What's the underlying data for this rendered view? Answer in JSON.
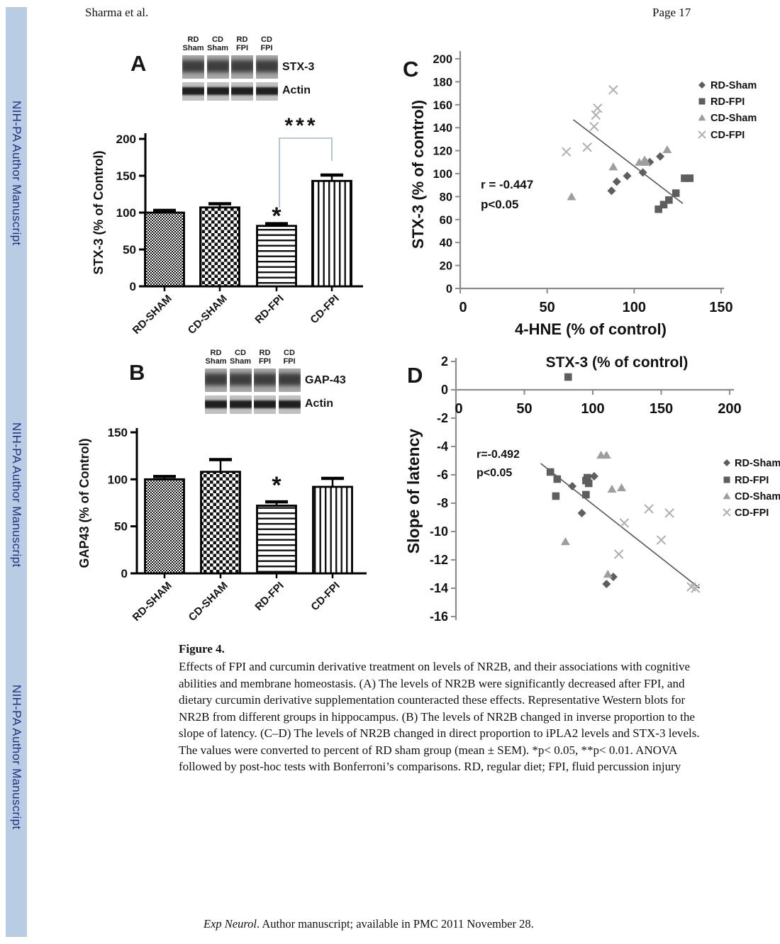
{
  "header": {
    "author": "Sharma et al.",
    "page_label": "Page 17"
  },
  "sidebar": {
    "watermark": "NIH-PA Author Manuscript"
  },
  "footer": {
    "journal_italic": "Exp Neurol",
    "text": ". Author manuscript; available in PMC 2011 November 28."
  },
  "caption": {
    "title": "Figure 4.",
    "body": "Effects of FPI and curcumin derivative treatment on levels of NR2B, and their associations with cognitive abilities and membrane homeostasis. (A) The levels of NR2B were significantly decreased after FPI, and dietary curcumin derivative supplementation counteracted these effects. Representative Western blots for NR2B from different groups in hippocampus. (B) The levels of NR2B changed in inverse proportion to the slope of latency. (C–D) The levels of NR2B changed in direct proportion to iPLA2 levels and STX-3 levels. The values were converted to percent of RD sham group (mean ± SEM). *p< 0.05, **p< 0.01. ANOVA followed by post-hoc tests with Bonferroni’s comparisons. RD, regular diet; FPI, fluid percussion injury"
  },
  "figure": {
    "panel_letters": [
      "A",
      "B",
      "C",
      "D"
    ],
    "blots": [
      {
        "panel": "A",
        "lane_labels": [
          [
            "RD",
            "Sham"
          ],
          [
            "CD",
            "Sham"
          ],
          [
            "RD",
            "FPI"
          ],
          [
            "CD",
            "FPI"
          ]
        ],
        "row_labels": [
          "STX-3",
          "Actin"
        ]
      },
      {
        "panel": "B",
        "lane_labels": [
          [
            "RD",
            "Sham"
          ],
          [
            "CD",
            "Sham"
          ],
          [
            "RD",
            "FPI"
          ],
          [
            "CD",
            "FPI"
          ]
        ],
        "row_labels": [
          "GAP-43",
          "Actin"
        ]
      }
    ]
  },
  "colors": {
    "sidebar_bg": "#b8cce4",
    "sidebar_text": "#27317f",
    "bracket": "#a3b8cd",
    "rd_marker": "#5e5e5e",
    "cd_sham_marker": "#9e9e9e",
    "cd_fpi_marker": "#b0b0b0",
    "trendline": "#555555",
    "scatter_axis": "#8c8c8c",
    "bar_axis": "#000000"
  },
  "chart_data": [
    {
      "panel": "A",
      "type": "bar",
      "categories": [
        "RD-SHAM",
        "CD-SHAM",
        "RD-FPI",
        "CD-FPI"
      ],
      "values": [
        100,
        107,
        82,
        143
      ],
      "errors": [
        3,
        5,
        3,
        8
      ],
      "ylabel": "STX-3 (% of Control)",
      "ylim": [
        0,
        200
      ],
      "yticks": [
        0,
        50,
        100,
        150,
        200
      ],
      "bar_patterns": [
        "fine-checker",
        "coarse-checker",
        "horizontal-lines",
        "vertical-lines"
      ],
      "significance": [
        {
          "type": "star",
          "category": "RD-FPI",
          "label": "*"
        },
        {
          "type": "bracket",
          "from": "RD-FPI",
          "to": "CD-FPI",
          "label": "***"
        }
      ]
    },
    {
      "panel": "B",
      "type": "bar",
      "categories": [
        "RD-SHAM",
        "CD-SHAM",
        "RD-FPI",
        "CD-FPI"
      ],
      "values": [
        100,
        108,
        72,
        92
      ],
      "errors": [
        3,
        13,
        4,
        9
      ],
      "ylabel": "GAP43 (% of Control)",
      "ylim": [
        0,
        150
      ],
      "yticks": [
        0,
        50,
        100,
        150
      ],
      "bar_patterns": [
        "fine-checker",
        "coarse-checker",
        "horizontal-lines",
        "vertical-lines"
      ],
      "significance": [
        {
          "type": "star",
          "category": "RD-FPI",
          "label": "*"
        }
      ]
    },
    {
      "panel": "C",
      "type": "scatter",
      "xlabel": "4-HNE (% of control)",
      "ylabel": "STX-3 (% of control)",
      "xlim": [
        0,
        160
      ],
      "xticks": [
        0,
        50,
        100,
        150
      ],
      "ylim": [
        0,
        200
      ],
      "yticks": [
        0,
        20,
        40,
        60,
        80,
        100,
        120,
        140,
        160,
        180,
        200
      ],
      "correlation": {
        "r_text": "r = -0.447",
        "p_text": "p<0.05"
      },
      "legend_position": "top-right",
      "series": [
        {
          "name": "RD-Sham",
          "marker": "diamond",
          "color": "#5e5e5e",
          "points": [
            [
              87,
              85
            ],
            [
              90,
              93
            ],
            [
              96,
              98
            ],
            [
              105,
              101
            ],
            [
              109,
              110
            ],
            [
              115,
              115
            ]
          ]
        },
        {
          "name": "RD-FPI",
          "marker": "square",
          "color": "#5e5e5e",
          "points": [
            [
              114,
              69
            ],
            [
              117,
              73
            ],
            [
              120,
              77
            ],
            [
              124,
              83
            ],
            [
              129,
              96
            ],
            [
              132,
              96
            ]
          ]
        },
        {
          "name": "CD-Sham",
          "marker": "triangle",
          "color": "#9e9e9e",
          "points": [
            [
              64,
              80
            ],
            [
              88,
              106
            ],
            [
              103,
              110
            ],
            [
              106,
              112
            ],
            [
              107,
              110
            ],
            [
              119,
              121
            ]
          ]
        },
        {
          "name": "CD-FPI",
          "marker": "x",
          "color": "#b0b0b0",
          "points": [
            [
              61,
              119
            ],
            [
              73,
              123
            ],
            [
              77,
              141
            ],
            [
              78,
              151
            ],
            [
              79,
              157
            ],
            [
              88,
              173
            ]
          ]
        }
      ],
      "trendline": {
        "x1": 65,
        "y1": 147,
        "x2": 128,
        "y2": 74
      }
    },
    {
      "panel": "D",
      "type": "scatter",
      "title": "STX-3 (% of control)",
      "ylabel": "Slope of latency",
      "xlim": [
        0,
        200
      ],
      "xticks": [
        0,
        50,
        100,
        150,
        200
      ],
      "ylim": [
        -16,
        2
      ],
      "yticks": [
        2,
        0,
        -2,
        -4,
        -6,
        -8,
        -10,
        -12,
        -14,
        -16
      ],
      "correlation": {
        "r_text": "r=-0.492",
        "p_text": "p<0.05"
      },
      "legend_position": "right",
      "series": [
        {
          "name": "RD-Sham",
          "marker": "diamond",
          "color": "#5e5e5e",
          "points": [
            [
              101,
              -6.1
            ],
            [
              85,
              -6.8
            ],
            [
              92,
              -8.7
            ],
            [
              115,
              -13.2
            ],
            [
              110,
              -13.7
            ]
          ]
        },
        {
          "name": "RD-FPI",
          "marker": "square",
          "color": "#5e5e5e",
          "points": [
            [
              82,
              0.9
            ],
            [
              69,
              -5.8
            ],
            [
              74,
              -6.3
            ],
            [
              95,
              -6.4
            ],
            [
              96,
              -6.2
            ],
            [
              97,
              -6.6
            ],
            [
              73,
              -7.5
            ],
            [
              95,
              -7.4
            ]
          ]
        },
        {
          "name": "CD-Sham",
          "marker": "triangle",
          "color": "#9e9e9e",
          "points": [
            [
              106,
              -4.6
            ],
            [
              110,
              -4.6
            ],
            [
              114,
              -7.0
            ],
            [
              121,
              -6.9
            ],
            [
              80,
              -10.7
            ],
            [
              111,
              -13.0
            ]
          ]
        },
        {
          "name": "CD-FPI",
          "marker": "x",
          "color": "#b0b0b0",
          "points": [
            [
              141,
              -8.4
            ],
            [
              156,
              -8.7
            ],
            [
              123,
              -9.4
            ],
            [
              150,
              -10.6
            ],
            [
              119,
              -11.6
            ],
            [
              172,
              -13.9
            ],
            [
              175,
              -14.0
            ]
          ]
        }
      ],
      "trendline": {
        "x1": 62,
        "y1": -5.2,
        "x2": 178,
        "y2": -14.0
      }
    }
  ]
}
